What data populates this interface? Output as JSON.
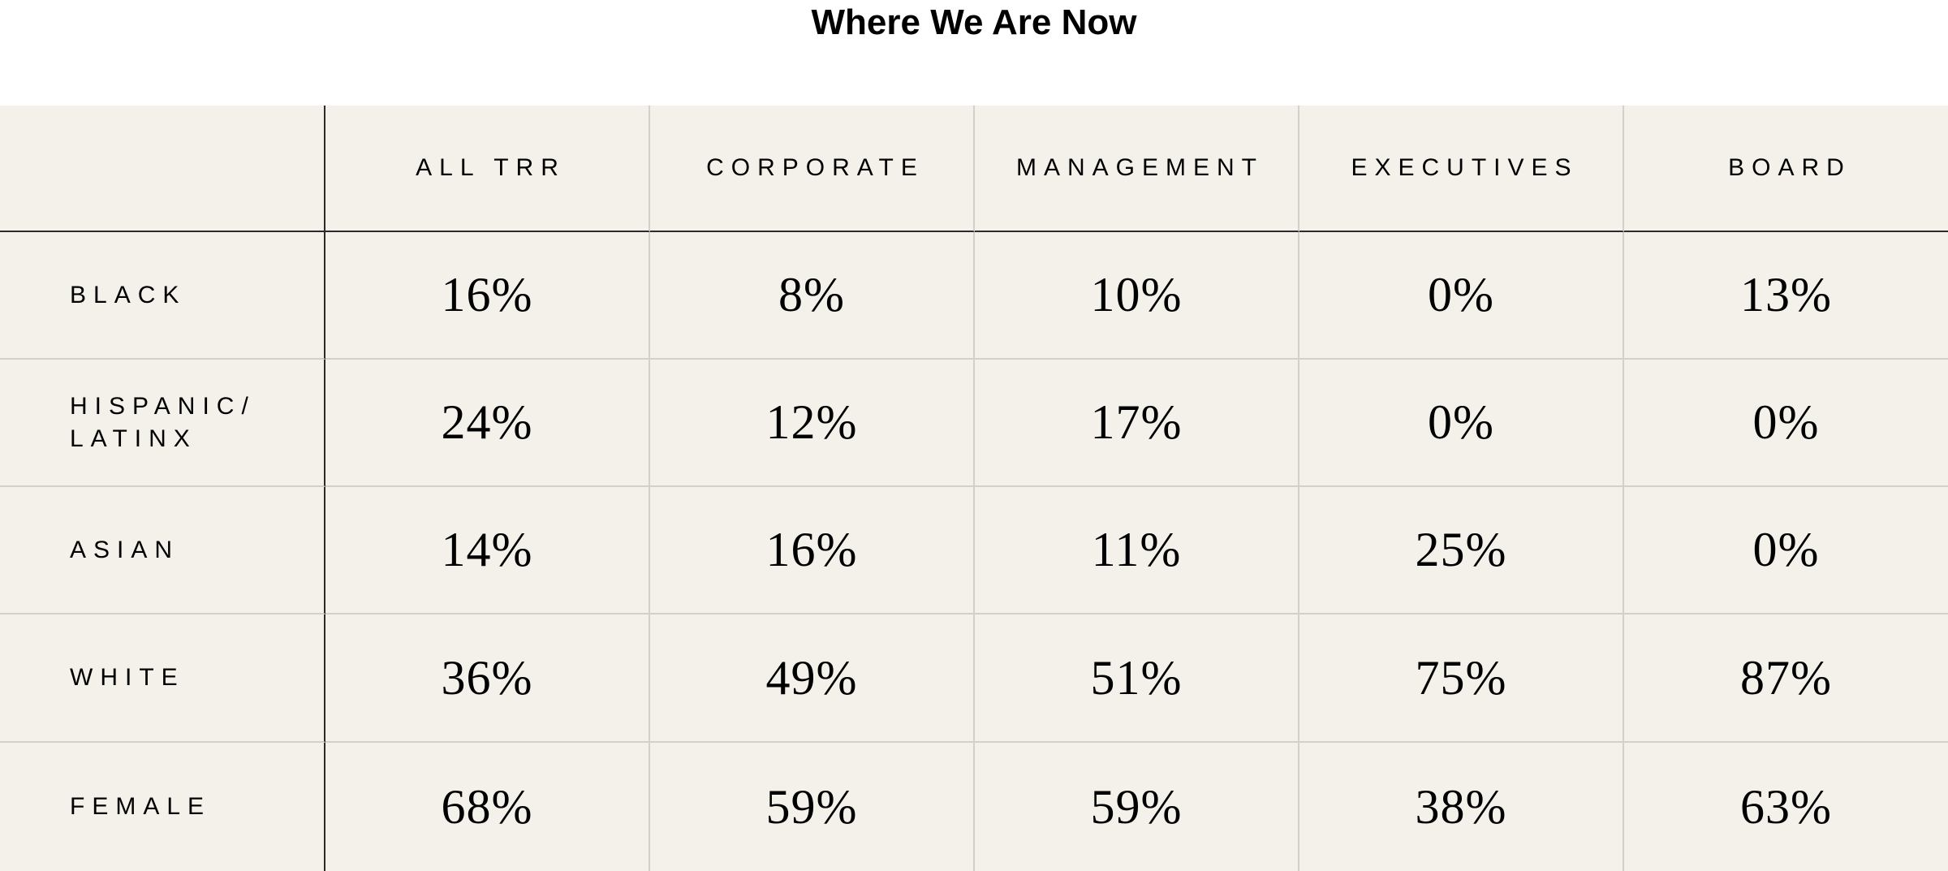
{
  "title": "Where We Are Now",
  "chart_data": {
    "type": "table",
    "title": "Where We Are Now",
    "columns": [
      "ALL TRR",
      "CORPORATE",
      "MANAGEMENT",
      "EXECUTIVES",
      "BOARD"
    ],
    "rows": [
      {
        "label": "BLACK",
        "values": [
          "16%",
          "8%",
          "10%",
          "0%",
          "13%"
        ]
      },
      {
        "label": "HISPANIC/\nLATINX",
        "values": [
          "24%",
          "12%",
          "17%",
          "0%",
          "0%"
        ]
      },
      {
        "label": "ASIAN",
        "values": [
          "14%",
          "16%",
          "11%",
          "25%",
          "0%"
        ]
      },
      {
        "label": "WHITE",
        "values": [
          "36%",
          "49%",
          "51%",
          "75%",
          "87%"
        ]
      },
      {
        "label": "FEMALE",
        "values": [
          "68%",
          "59%",
          "59%",
          "38%",
          "63%"
        ]
      }
    ]
  },
  "colors": {
    "table_background": "#f3f1ea",
    "grid_line": "#d2d0ca",
    "header_divider": "#2b2b2b",
    "text": "#000000"
  }
}
